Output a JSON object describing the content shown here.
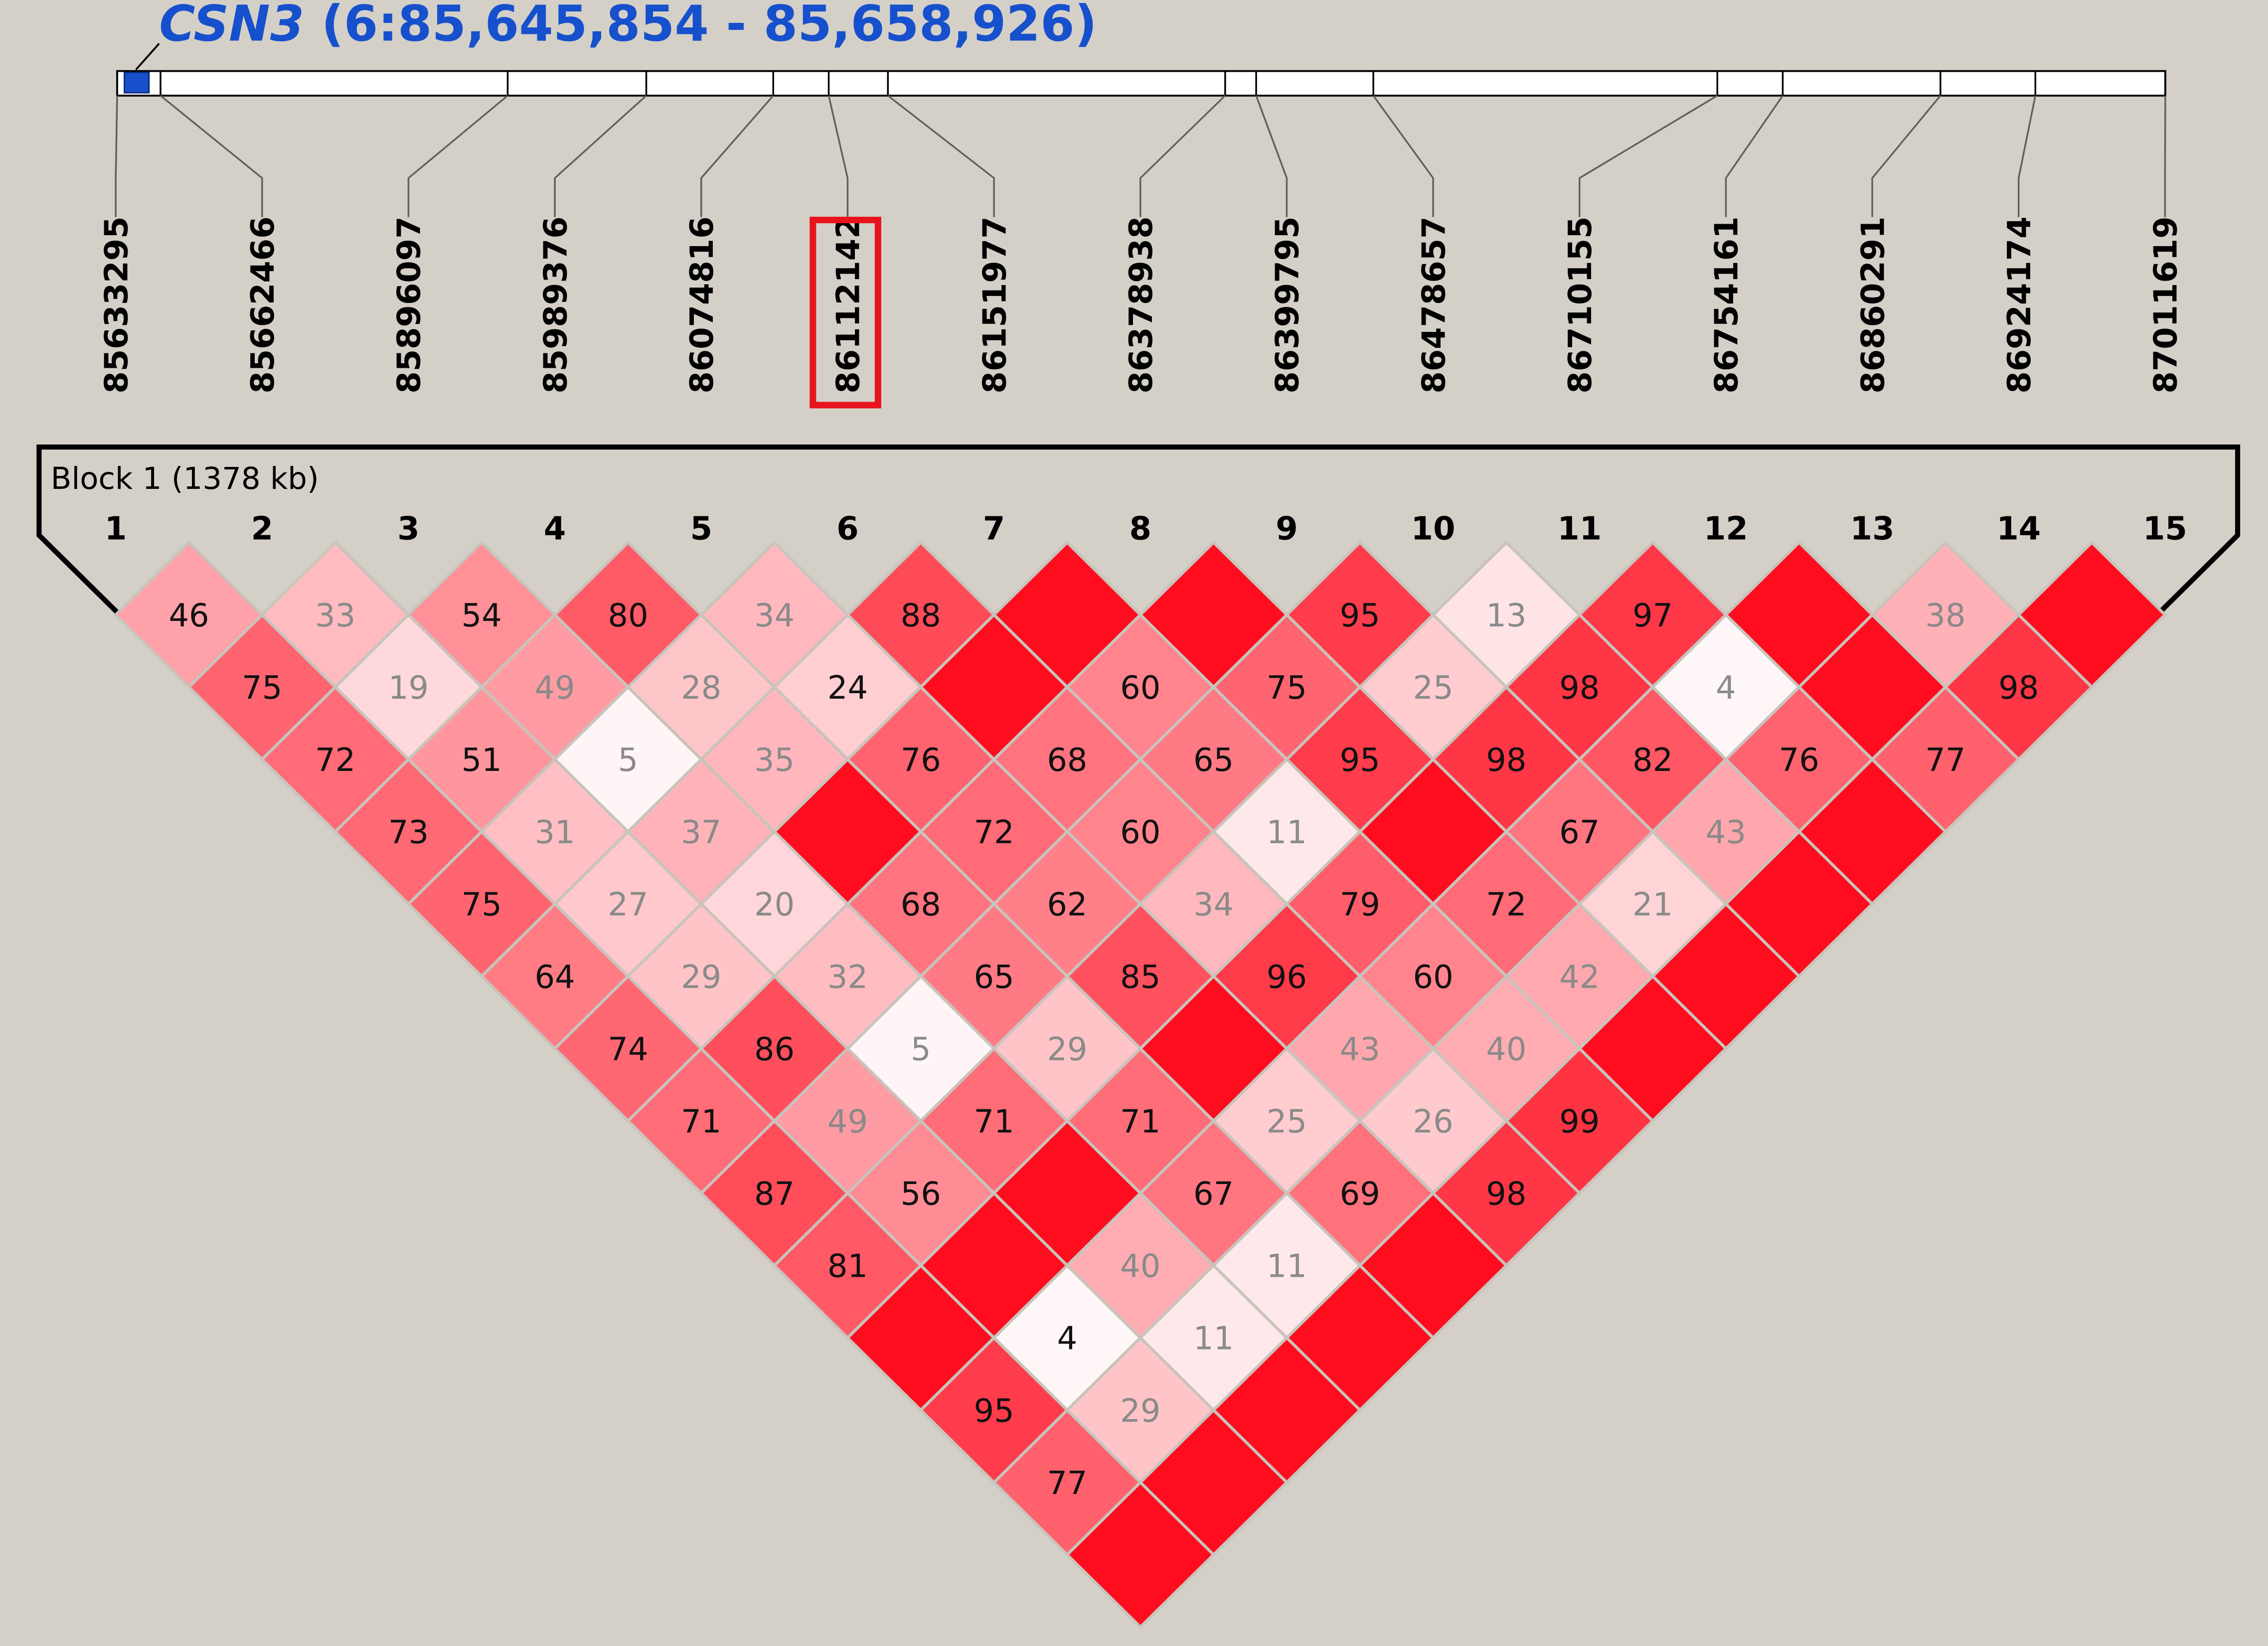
{
  "gene": {
    "name": "CSN3",
    "coords": " (6:85,645,854 - 85,658,926)",
    "color": "#1750cc"
  },
  "markers": {
    "positions": [
      85633295,
      85662466,
      85896097,
      85989376,
      86074816,
      86112142,
      86151977,
      86378938,
      86399795,
      86478657,
      86710155,
      86754161,
      86860291,
      86924174,
      87011619
    ],
    "labels": [
      "85633295",
      "85662466",
      "85896097",
      "85989376",
      "86074816",
      "86112142",
      "86151977",
      "86378938",
      "86399795",
      "86478657",
      "86710155",
      "86754161",
      "86860291",
      "86924174",
      "87011619"
    ],
    "numbers": [
      "1",
      "2",
      "3",
      "4",
      "5",
      "6",
      "7",
      "8",
      "9",
      "10",
      "11",
      "12",
      "13",
      "14",
      "15"
    ],
    "highlighted_index": 5
  },
  "block": {
    "label": "Block 1 (1378 kb)"
  },
  "chart_data": {
    "type": "heatmap",
    "description_note": "",
    "ld_rows": [
      [
        "46",
        "33",
        "54",
        "80",
        "34",
        "88",
        "",
        "",
        "95",
        "13",
        "97",
        "",
        "38",
        ""
      ],
      [
        "75",
        "19",
        "49",
        "28",
        "24",
        "",
        "60",
        "75",
        "25",
        "98",
        "4",
        "",
        "98"
      ],
      [
        "72",
        "51",
        "5",
        "35",
        "76",
        "68",
        "65",
        "95",
        "98",
        "82",
        "76",
        "77"
      ],
      [
        "73",
        "31",
        "37",
        "",
        "72",
        "60",
        "11",
        "",
        "67",
        "43",
        ""
      ],
      [
        "75",
        "27",
        "20",
        "68",
        "62",
        "34",
        "79",
        "72",
        "21",
        ""
      ],
      [
        "64",
        "29",
        "32",
        "65",
        "85",
        "96",
        "60",
        "42",
        ""
      ],
      [
        "74",
        "86",
        "5",
        "29",
        "",
        "43",
        "40",
        ""
      ],
      [
        "71",
        "49",
        "71",
        "71",
        "25",
        "26",
        "99"
      ],
      [
        "87",
        "56",
        "",
        "67",
        "69",
        "98"
      ],
      [
        "81",
        "",
        "40",
        "11",
        ""
      ],
      [
        "",
        "4",
        "11",
        ""
      ],
      [
        "95",
        "29",
        ""
      ],
      [
        "77",
        ""
      ],
      [
        ""
      ]
    ],
    "ld_values": [
      [
        46,
        33,
        54,
        80,
        34,
        88,
        100,
        100,
        95,
        13,
        97,
        100,
        38,
        100
      ],
      [
        75,
        19,
        49,
        28,
        24,
        100,
        60,
        75,
        25,
        98,
        4,
        100,
        98
      ],
      [
        72,
        51,
        5,
        35,
        76,
        68,
        65,
        95,
        98,
        82,
        76,
        77
      ],
      [
        73,
        31,
        37,
        100,
        72,
        60,
        11,
        100,
        67,
        43,
        100
      ],
      [
        75,
        27,
        20,
        68,
        62,
        34,
        79,
        72,
        21,
        100
      ],
      [
        64,
        29,
        32,
        65,
        85,
        96,
        60,
        42,
        100
      ],
      [
        74,
        86,
        5,
        29,
        100,
        43,
        40,
        100
      ],
      [
        71,
        49,
        71,
        71,
        25,
        26,
        99
      ],
      [
        87,
        56,
        100,
        67,
        69,
        98
      ],
      [
        81,
        100,
        40,
        11,
        100
      ],
      [
        100,
        4,
        11,
        100
      ],
      [
        95,
        29,
        100
      ],
      [
        77,
        100
      ],
      [
        100
      ]
    ],
    "light_cells": [
      [
        false,
        true,
        false,
        false,
        true,
        false,
        false,
        false,
        false,
        true,
        false,
        false,
        true,
        false
      ],
      [
        false,
        true,
        true,
        true,
        false,
        false,
        false,
        false,
        true,
        false,
        true,
        false,
        false
      ],
      [
        false,
        false,
        true,
        true,
        false,
        false,
        false,
        false,
        false,
        false,
        false,
        false
      ],
      [
        false,
        true,
        true,
        false,
        false,
        false,
        true,
        false,
        false,
        true,
        false
      ],
      [
        false,
        true,
        true,
        false,
        false,
        true,
        false,
        false,
        true,
        false
      ],
      [
        false,
        true,
        true,
        false,
        false,
        false,
        false,
        true,
        false
      ],
      [
        false,
        false,
        true,
        true,
        false,
        true,
        true,
        false
      ],
      [
        false,
        true,
        false,
        false,
        true,
        true,
        false
      ],
      [
        false,
        false,
        false,
        false,
        false,
        false
      ],
      [
        false,
        false,
        true,
        true,
        false
      ],
      [
        false,
        false,
        true,
        false
      ],
      [
        false,
        true,
        false
      ],
      [
        false,
        false
      ],
      [
        false
      ]
    ],
    "colors": {
      "strong": "#ff0d1f",
      "white": "#ffffff",
      "highlight_box": "#e8141c",
      "background": "#d4d0c8"
    }
  }
}
